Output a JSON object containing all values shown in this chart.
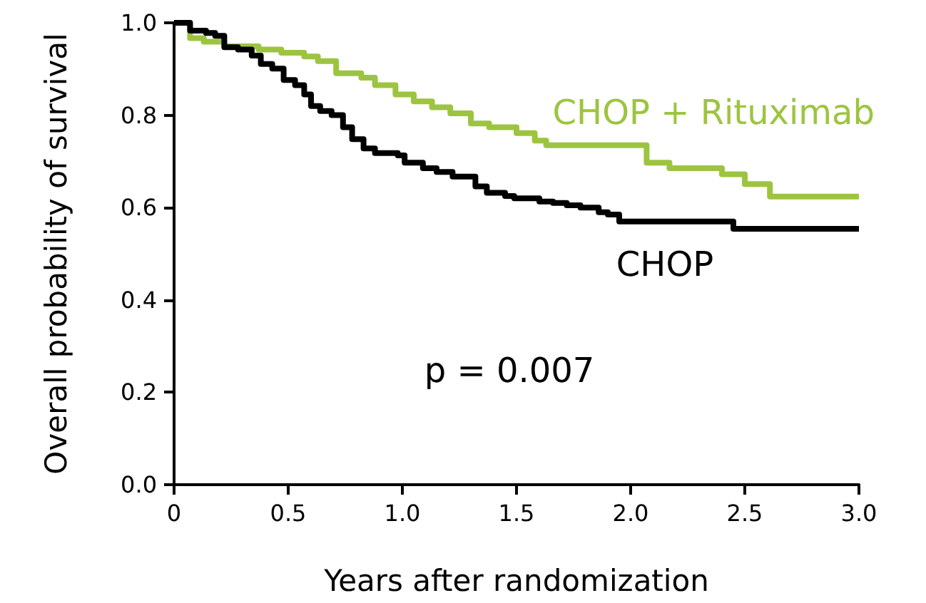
{
  "chart_data": {
    "type": "step",
    "xlabel": "Years after randomization",
    "ylabel": "Overall probability of survival",
    "xlim": [
      0,
      3
    ],
    "xticks": [
      0,
      0.5,
      {
        "value": 1,
        "label": "1.0"
      },
      1.5,
      {
        "value": 2,
        "label": "2.0"
      },
      2.5,
      {
        "value": 3,
        "label": "3.0"
      }
    ],
    "ylim": [
      0,
      1
    ],
    "yticks": [
      {
        "value": 0,
        "label": "0.0"
      },
      0.2,
      0.4,
      0.6,
      0.8,
      {
        "value": 1,
        "label": "1.0"
      }
    ],
    "annotations": [
      "p = 0.007"
    ],
    "series": [
      {
        "name": "CHOP + Rituximab",
        "color": "#9dc440",
        "x": [
          0,
          0.07,
          0.13,
          0.22,
          0.37,
          0.47,
          0.57,
          0.63,
          0.71,
          0.82,
          0.88,
          0.97,
          1.05,
          1.13,
          1.21,
          1.3,
          1.38,
          1.5,
          1.58,
          1.63,
          2.07,
          2.17,
          2.4,
          2.5,
          2.61,
          3.0
        ],
        "values": [
          1.0,
          0.967,
          0.959,
          0.949,
          0.942,
          0.935,
          0.927,
          0.917,
          0.891,
          0.881,
          0.865,
          0.845,
          0.83,
          0.817,
          0.804,
          0.782,
          0.774,
          0.761,
          0.745,
          0.735,
          0.697,
          0.685,
          0.672,
          0.651,
          0.624,
          0.624
        ]
      },
      {
        "name": "CHOP",
        "color": "#000000",
        "x": [
          0,
          0.07,
          0.14,
          0.18,
          0.22,
          0.28,
          0.34,
          0.38,
          0.43,
          0.48,
          0.53,
          0.57,
          0.6,
          0.64,
          0.69,
          0.74,
          0.78,
          0.83,
          0.88,
          0.98,
          1.01,
          1.09,
          1.15,
          1.22,
          1.32,
          1.37,
          1.45,
          1.49,
          1.6,
          1.66,
          1.72,
          1.78,
          1.86,
          1.9,
          1.95,
          2.45,
          3.0
        ],
        "values": [
          1.0,
          0.983,
          0.978,
          0.972,
          0.947,
          0.942,
          0.929,
          0.911,
          0.901,
          0.876,
          0.865,
          0.845,
          0.82,
          0.809,
          0.8,
          0.774,
          0.748,
          0.728,
          0.718,
          0.713,
          0.697,
          0.685,
          0.677,
          0.667,
          0.646,
          0.632,
          0.625,
          0.62,
          0.613,
          0.61,
          0.605,
          0.6,
          0.59,
          0.585,
          0.57,
          0.554,
          0.554
        ]
      }
    ]
  }
}
